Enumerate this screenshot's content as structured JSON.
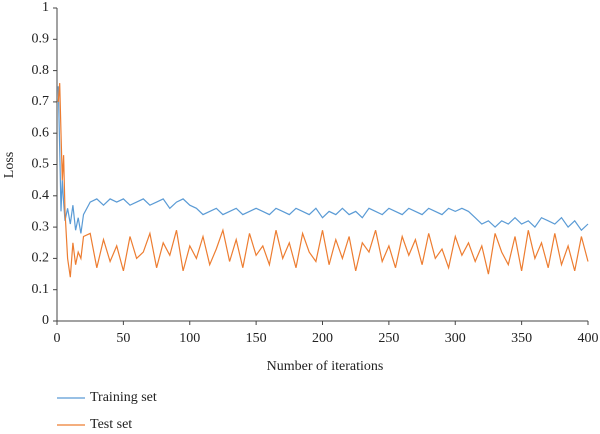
{
  "chart_data": {
    "type": "line",
    "xlabel": "Number of iterations",
    "ylabel": "Loss",
    "x": [
      1,
      2,
      3,
      4,
      5,
      6,
      8,
      10,
      12,
      14,
      16,
      18,
      20,
      25,
      30,
      35,
      40,
      45,
      50,
      55,
      60,
      65,
      70,
      75,
      80,
      85,
      90,
      95,
      100,
      105,
      110,
      115,
      120,
      125,
      130,
      135,
      140,
      145,
      150,
      155,
      160,
      165,
      170,
      175,
      180,
      185,
      190,
      195,
      200,
      205,
      210,
      215,
      220,
      225,
      230,
      235,
      240,
      245,
      250,
      255,
      260,
      265,
      270,
      275,
      280,
      285,
      290,
      295,
      300,
      305,
      310,
      315,
      320,
      325,
      330,
      335,
      340,
      345,
      350,
      355,
      360,
      365,
      370,
      375,
      380,
      385,
      390,
      395,
      400
    ],
    "series": [
      {
        "name": "Training set",
        "color": "#5b9bd5",
        "values": [
          0.75,
          0.55,
          0.35,
          0.45,
          0.38,
          0.32,
          0.36,
          0.31,
          0.37,
          0.29,
          0.33,
          0.28,
          0.34,
          0.38,
          0.39,
          0.37,
          0.39,
          0.38,
          0.39,
          0.37,
          0.38,
          0.39,
          0.37,
          0.38,
          0.39,
          0.36,
          0.38,
          0.39,
          0.37,
          0.36,
          0.34,
          0.35,
          0.36,
          0.34,
          0.35,
          0.36,
          0.34,
          0.35,
          0.36,
          0.35,
          0.34,
          0.36,
          0.35,
          0.34,
          0.36,
          0.35,
          0.34,
          0.36,
          0.33,
          0.35,
          0.34,
          0.36,
          0.34,
          0.35,
          0.33,
          0.36,
          0.35,
          0.34,
          0.36,
          0.35,
          0.34,
          0.36,
          0.35,
          0.34,
          0.36,
          0.35,
          0.34,
          0.36,
          0.35,
          0.36,
          0.35,
          0.33,
          0.31,
          0.32,
          0.3,
          0.32,
          0.31,
          0.33,
          0.31,
          0.32,
          0.3,
          0.33,
          0.32,
          0.31,
          0.33,
          0.3,
          0.32,
          0.29,
          0.31
        ]
      },
      {
        "name": "Test set",
        "color": "#ed7d31",
        "values": [
          0.7,
          0.76,
          0.6,
          0.45,
          0.53,
          0.35,
          0.2,
          0.14,
          0.25,
          0.18,
          0.22,
          0.2,
          0.27,
          0.28,
          0.17,
          0.26,
          0.19,
          0.24,
          0.16,
          0.27,
          0.2,
          0.22,
          0.28,
          0.17,
          0.25,
          0.21,
          0.29,
          0.16,
          0.24,
          0.2,
          0.27,
          0.18,
          0.23,
          0.29,
          0.19,
          0.26,
          0.17,
          0.28,
          0.21,
          0.24,
          0.18,
          0.29,
          0.2,
          0.25,
          0.17,
          0.28,
          0.22,
          0.19,
          0.29,
          0.18,
          0.26,
          0.2,
          0.27,
          0.16,
          0.25,
          0.22,
          0.29,
          0.19,
          0.24,
          0.17,
          0.27,
          0.21,
          0.26,
          0.18,
          0.28,
          0.2,
          0.23,
          0.17,
          0.27,
          0.21,
          0.25,
          0.19,
          0.24,
          0.15,
          0.28,
          0.22,
          0.18,
          0.27,
          0.16,
          0.29,
          0.2,
          0.25,
          0.17,
          0.28,
          0.18,
          0.24,
          0.16,
          0.27,
          0.19
        ]
      }
    ],
    "xlim": [
      0,
      400
    ],
    "xticks": [
      0,
      50,
      100,
      150,
      200,
      250,
      300,
      350,
      400
    ],
    "ylim": [
      0,
      1
    ],
    "yticks": [
      0,
      0.1,
      0.2,
      0.3,
      0.4,
      0.5,
      0.6,
      0.7,
      0.8,
      0.9,
      1
    ],
    "grid": false
  }
}
